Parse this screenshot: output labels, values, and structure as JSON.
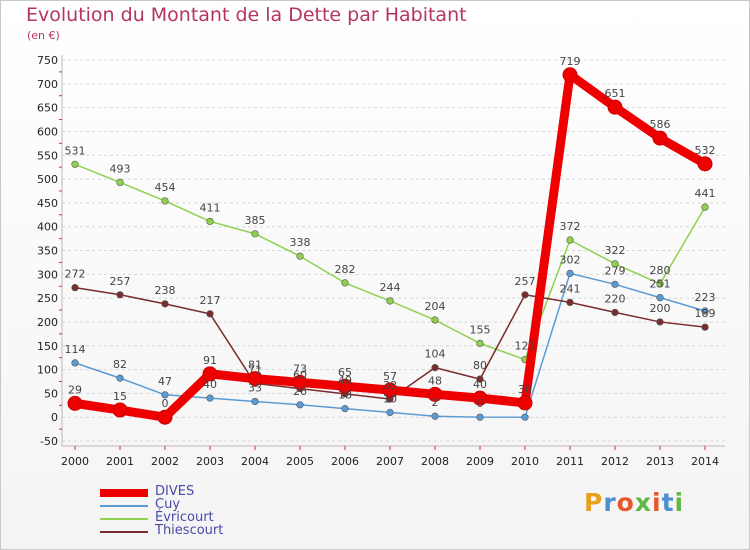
{
  "header": {
    "title": "Evolution du Montant de la Dette par Habitant",
    "subtitle": "(en €)"
  },
  "branding": {
    "logo_text": "Proxiti",
    "logo_colors": [
      "#e6a11e",
      "#4f8fcf",
      "#e6572a",
      "#62b846",
      "#e6572a",
      "#4f8fcf",
      "#62b846"
    ]
  },
  "chart_data": {
    "type": "line",
    "title": "Evolution du Montant de la Dette par Habitant",
    "subtitle": "(en €)",
    "xlabel": "",
    "ylabel": "",
    "x": [
      "2000",
      "2001",
      "2002",
      "2003",
      "2004",
      "2005",
      "2006",
      "2007",
      "2008",
      "2009",
      "2010",
      "2011",
      "2012",
      "2013",
      "2014"
    ],
    "ylim": [
      -50,
      750
    ],
    "yticks": [
      -50,
      0,
      50,
      100,
      150,
      200,
      250,
      300,
      350,
      400,
      450,
      500,
      550,
      600,
      650,
      700,
      750
    ],
    "grid": "horizontal",
    "legend": "bottom-left",
    "series": [
      {
        "name": "Cuy",
        "color": "#5b9bd5",
        "values": [
          114,
          82,
          47,
          40,
          33,
          26,
          18,
          10,
          2,
          0,
          0,
          302,
          279,
          251,
          223
        ],
        "labels": [
          "114",
          "82",
          "47",
          "40",
          "33",
          "26",
          "18",
          "10",
          "2",
          "0",
          "",
          "302",
          "279",
          "251",
          "223"
        ]
      },
      {
        "name": "Évricourt",
        "color": "#8fd14f",
        "values": [
          531,
          493,
          454,
          411,
          385,
          338,
          282,
          244,
          204,
          155,
          121,
          372,
          322,
          280,
          441
        ],
        "labels": [
          "531",
          "493",
          "454",
          "411",
          "385",
          "338",
          "282",
          "244",
          "204",
          "155",
          "121",
          "372",
          "322",
          "280",
          "441"
        ]
      },
      {
        "name": "Thiescourt",
        "color": "#7b2c2c",
        "values": [
          272,
          257,
          238,
          217,
          71,
          60,
          49,
          38,
          104,
          80,
          257,
          241,
          220,
          200,
          189
        ],
        "labels": [
          "272",
          "257",
          "238",
          "217",
          "71",
          "60",
          "49",
          "38",
          "104",
          "80",
          "257",
          "241",
          "220",
          "200",
          "189"
        ]
      },
      {
        "name": "DIVES",
        "color": "#ee0000",
        "values": [
          29,
          15,
          0,
          91,
          81,
          73,
          65,
          57,
          48,
          40,
          30,
          719,
          651,
          586,
          532
        ],
        "labels": [
          "29",
          "15",
          "0",
          "91",
          "81",
          "73",
          "65",
          "57",
          "48",
          "40",
          "30",
          "719",
          "651",
          "586",
          "532"
        ]
      }
    ],
    "legend_order": [
      "DIVES",
      "Cuy",
      "Évricourt",
      "Thiescourt"
    ]
  }
}
